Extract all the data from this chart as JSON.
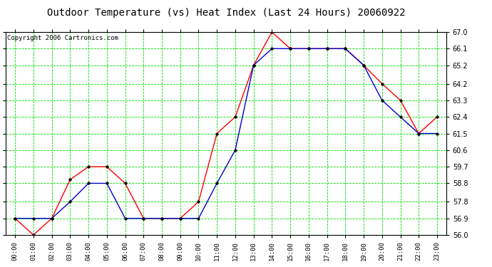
{
  "title": "Outdoor Temperature (vs) Heat Index (Last 24 Hours) 20060922",
  "copyright": "Copyright 2006 Cartronics.com",
  "hours": [
    "00:00",
    "01:00",
    "02:00",
    "03:00",
    "04:00",
    "05:00",
    "06:00",
    "07:00",
    "08:00",
    "09:00",
    "10:00",
    "11:00",
    "12:00",
    "13:00",
    "14:00",
    "15:00",
    "16:00",
    "17:00",
    "18:00",
    "19:00",
    "20:00",
    "21:00",
    "22:00",
    "23:00"
  ],
  "temp": [
    56.9,
    56.0,
    56.9,
    59.0,
    59.7,
    59.7,
    58.8,
    56.9,
    56.9,
    56.9,
    57.8,
    61.5,
    62.4,
    65.2,
    67.0,
    66.1,
    66.1,
    66.1,
    66.1,
    65.2,
    64.2,
    63.3,
    61.5,
    62.4
  ],
  "heat_index": [
    56.9,
    56.9,
    56.9,
    57.8,
    58.8,
    58.8,
    56.9,
    56.9,
    56.9,
    56.9,
    56.9,
    58.8,
    60.6,
    65.2,
    66.1,
    66.1,
    66.1,
    66.1,
    66.1,
    65.2,
    63.3,
    62.4,
    61.5,
    61.5
  ],
  "ylim": [
    56.0,
    67.0
  ],
  "yticks": [
    56.0,
    56.9,
    57.8,
    58.8,
    59.7,
    60.6,
    61.5,
    62.4,
    63.3,
    64.2,
    65.2,
    66.1,
    67.0
  ],
  "temp_color": "#ff0000",
  "heat_index_color": "#0000cc",
  "grid_color": "#00dd00",
  "bg_color": "#ffffff",
  "title_fontsize": 10,
  "copyright_fontsize": 6.5
}
